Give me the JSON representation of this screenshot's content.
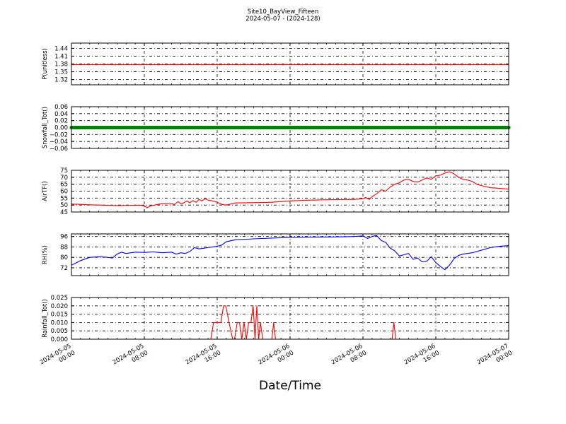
{
  "title": "Site10_BayView_Fifteen",
  "subtitle": "2024-05-07 - (2024-128)",
  "xlabel": "Date/Time",
  "x_ticks": [
    {
      "t": 0,
      "line1": "2024-05-05",
      "line2": "00:00"
    },
    {
      "t": 8,
      "line1": "2024-05-05",
      "line2": "08:00"
    },
    {
      "t": 16,
      "line1": "2024-05-05",
      "line2": "16:00"
    },
    {
      "t": 24,
      "line1": "2024-05-06",
      "line2": "00:00"
    },
    {
      "t": 32,
      "line1": "2024-05-06",
      "line2": "08:00"
    },
    {
      "t": 40,
      "line1": "2024-05-06",
      "line2": "16:00"
    },
    {
      "t": 48,
      "line1": "2024-05-07",
      "line2": "00:00"
    }
  ],
  "chart_data": [
    {
      "type": "line",
      "ylabel": "P(unitless)",
      "ylim": [
        1.3,
        1.46
      ],
      "yticks": [
        1.32,
        1.35,
        1.38,
        1.41,
        1.44
      ],
      "yticklabels": [
        "1.32",
        "1.35",
        "1.38",
        "1.41",
        "1.44"
      ],
      "grid": true,
      "series": [
        {
          "color": "#ff0000",
          "marker": "none",
          "x": [
            0,
            48
          ],
          "values": [
            1.377,
            1.377
          ]
        }
      ]
    },
    {
      "type": "line",
      "ylabel": "Snowfall_Tot()",
      "ylim": [
        -0.06,
        0.06
      ],
      "yticks": [
        -0.06,
        -0.04,
        -0.02,
        0.0,
        0.02,
        0.04,
        0.06
      ],
      "yticklabels": [
        "−0.06",
        "−0.04",
        "−0.02",
        "0.00",
        "0.02",
        "0.04",
        "0.06"
      ],
      "grid": true,
      "series": [
        {
          "color": "#008000",
          "marker": "dot",
          "x": [
            0,
            48
          ],
          "values": [
            0,
            0
          ]
        }
      ]
    },
    {
      "type": "line",
      "ylabel": "AirTF()",
      "ylim": [
        45,
        75
      ],
      "yticks": [
        45,
        50,
        55,
        60,
        65,
        70,
        75
      ],
      "yticklabels": [
        "45",
        "50",
        "55",
        "60",
        "65",
        "70",
        "75"
      ],
      "grid": true,
      "series": [
        {
          "color": "#ff0000",
          "marker": "none",
          "x": [
            0,
            1,
            2,
            3,
            4,
            5,
            6,
            7,
            7.5,
            8,
            8.3,
            8.7,
            9,
            9.5,
            10,
            11,
            11.3,
            11.7,
            12,
            12.3,
            12.7,
            13,
            13.3,
            13.7,
            14,
            14.3,
            14.7,
            15,
            15.5,
            16,
            16.5,
            17,
            18,
            20,
            22,
            24,
            26,
            28,
            30,
            31,
            32,
            32.3,
            32.7,
            33,
            33.5,
            34,
            34.5,
            35,
            35.5,
            36,
            36.5,
            37,
            37.5,
            38,
            38.5,
            39,
            39.5,
            40,
            40.5,
            41,
            41.5,
            42,
            42.5,
            43,
            43.5,
            44,
            44.5,
            45,
            46,
            47,
            48
          ],
          "values": [
            50.7,
            50.5,
            50.2,
            50.0,
            49.8,
            49.6,
            49.7,
            49.8,
            49.9,
            49.5,
            48.0,
            49.5,
            49.8,
            50.5,
            51.0,
            51.0,
            50.4,
            52.5,
            51.0,
            51.5,
            53.0,
            51.5,
            53.2,
            52.0,
            54.0,
            53.0,
            54.5,
            53.5,
            53.0,
            52.0,
            50.5,
            50.0,
            51.5,
            51.7,
            52.0,
            53.0,
            53.5,
            53.8,
            54.0,
            54.0,
            54.5,
            55.5,
            54.0,
            56.0,
            58.0,
            61.0,
            60.0,
            63.0,
            65.0,
            66.0,
            68.0,
            68.5,
            67.0,
            66.5,
            68.0,
            69.5,
            68.5,
            71.0,
            71.5,
            73.0,
            74.0,
            72.5,
            70.0,
            68.5,
            68.0,
            67.0,
            65.0,
            64.0,
            62.5,
            62.0,
            61.5
          ]
        }
      ]
    },
    {
      "type": "line",
      "ylabel": "RH(%)",
      "ylim": [
        66,
        98
      ],
      "yticks": [
        72,
        80,
        88,
        96
      ],
      "yticklabels": [
        "72",
        "80",
        "88",
        "96"
      ],
      "grid": true,
      "series": [
        {
          "color": "#0000ff",
          "marker": "none",
          "x": [
            0,
            1,
            2,
            3,
            4,
            4.5,
            5,
            5.5,
            6,
            7,
            8,
            9,
            10,
            11,
            11.5,
            12,
            12.5,
            13,
            13.5,
            14,
            14.5,
            15,
            16,
            16.5,
            17,
            18,
            20,
            22,
            24,
            26,
            28,
            30,
            31,
            32,
            32.5,
            33,
            33.5,
            34,
            34.5,
            35,
            35.5,
            36,
            36.5,
            37,
            37.5,
            38,
            38.5,
            39,
            39.5,
            40,
            40.5,
            41,
            41.5,
            42,
            42.5,
            43,
            44,
            45,
            46,
            47,
            48
          ],
          "values": [
            74.0,
            77.5,
            80.0,
            80.5,
            80.0,
            79.5,
            82.5,
            84.0,
            83.0,
            84.0,
            83.8,
            84.2,
            83.5,
            84.0,
            82.5,
            83.5,
            83.0,
            84.5,
            87.5,
            86.5,
            87.0,
            87.5,
            88.5,
            89.5,
            92.0,
            93.5,
            94.2,
            94.8,
            95.3,
            95.5,
            95.6,
            95.8,
            96.0,
            96.5,
            94.5,
            96.0,
            96.8,
            93.0,
            91.5,
            87.0,
            85.0,
            81.0,
            82.0,
            83.0,
            78.5,
            79.5,
            76.5,
            77.0,
            80.5,
            76.0,
            73.0,
            70.5,
            74.0,
            79.0,
            81.5,
            82.5,
            83.5,
            85.5,
            87.5,
            88.5,
            89.0
          ]
        }
      ]
    },
    {
      "type": "line",
      "ylabel": "Rainfall_Tot()",
      "ylim": [
        0,
        0.025
      ],
      "yticks": [
        0.0,
        0.005,
        0.01,
        0.015,
        0.02,
        0.025
      ],
      "yticklabels": [
        "0.000",
        "0.005",
        "0.010",
        "0.015",
        "0.020",
        "0.025"
      ],
      "grid": true,
      "series": [
        {
          "color": "#ff0000",
          "marker": "none",
          "x": [
            0,
            15.3,
            15.6,
            16.4,
            16.7,
            16.95,
            17.3,
            17.7,
            17.9,
            18.2,
            18.45,
            18.7,
            18.95,
            19.2,
            19.45,
            19.7,
            19.95,
            20.15,
            20.35,
            20.55,
            20.75,
            21.0,
            21.2,
            21.4,
            21.6,
            22.0,
            22.2,
            22.4,
            22.6,
            35.2,
            35.4,
            35.6,
            48
          ],
          "values": [
            0,
            0,
            0.01,
            0.01,
            0.02,
            0.02,
            0.01,
            0,
            0,
            0.01,
            0.01,
            0,
            0.01,
            0,
            0.01,
            0.01,
            0.02,
            0,
            0.02,
            0,
            0.01,
            0,
            0,
            0,
            0,
            0,
            0.01,
            0,
            0,
            0,
            0.01,
            0,
            0
          ]
        }
      ]
    }
  ]
}
